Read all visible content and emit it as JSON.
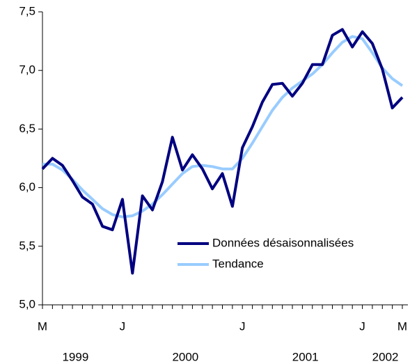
{
  "chart_data": {
    "type": "line",
    "categories": [
      "M",
      null,
      null,
      null,
      null,
      null,
      null,
      null,
      "J",
      null,
      null,
      null,
      null,
      null,
      null,
      null,
      null,
      null,
      null,
      null,
      "J",
      null,
      null,
      null,
      null,
      null,
      null,
      null,
      null,
      null,
      null,
      null,
      "J",
      null,
      null,
      null,
      "M"
    ],
    "years": [
      null,
      null,
      null,
      "1999",
      null,
      null,
      null,
      null,
      null,
      null,
      null,
      null,
      null,
      null,
      "2000",
      null,
      null,
      null,
      null,
      null,
      null,
      null,
      null,
      null,
      null,
      null,
      "2001",
      null,
      null,
      null,
      null,
      null,
      null,
      null,
      "2002",
      null,
      null
    ],
    "series": [
      {
        "name": "Données désaisonnalisées",
        "color": "#000080",
        "width": 4,
        "values": [
          6.16,
          6.25,
          6.19,
          6.06,
          5.92,
          5.86,
          5.67,
          5.64,
          5.9,
          5.27,
          5.93,
          5.81,
          6.05,
          6.43,
          6.15,
          6.28,
          6.16,
          5.99,
          6.12,
          5.84,
          6.34,
          6.52,
          6.73,
          6.88,
          6.89,
          6.78,
          6.89,
          7.05,
          7.05,
          7.3,
          7.35,
          7.2,
          7.33,
          7.23,
          7.01,
          6.68,
          6.77
        ]
      },
      {
        "name": "Tendance",
        "color": "#99ccff",
        "width": 4,
        "values": [
          6.2,
          6.2,
          6.15,
          6.07,
          5.98,
          5.9,
          5.82,
          5.77,
          5.75,
          5.76,
          5.8,
          5.86,
          5.94,
          6.03,
          6.12,
          6.18,
          6.19,
          6.18,
          6.16,
          6.16,
          6.25,
          6.38,
          6.52,
          6.66,
          6.77,
          6.85,
          6.91,
          6.97,
          7.05,
          7.15,
          7.24,
          7.29,
          7.27,
          7.15,
          7.02,
          6.93,
          6.87
        ]
      }
    ],
    "ylim": [
      5.0,
      7.5
    ],
    "yticks": [
      {
        "value": 5.0,
        "label": "5,0"
      },
      {
        "value": 5.5,
        "label": "5,5"
      },
      {
        "value": 6.0,
        "label": "6,0"
      },
      {
        "value": 6.5,
        "label": "6,5"
      },
      {
        "value": 7.0,
        "label": "7,0"
      },
      {
        "value": 7.5,
        "label": "7,5"
      }
    ],
    "legend": "lower-right"
  }
}
